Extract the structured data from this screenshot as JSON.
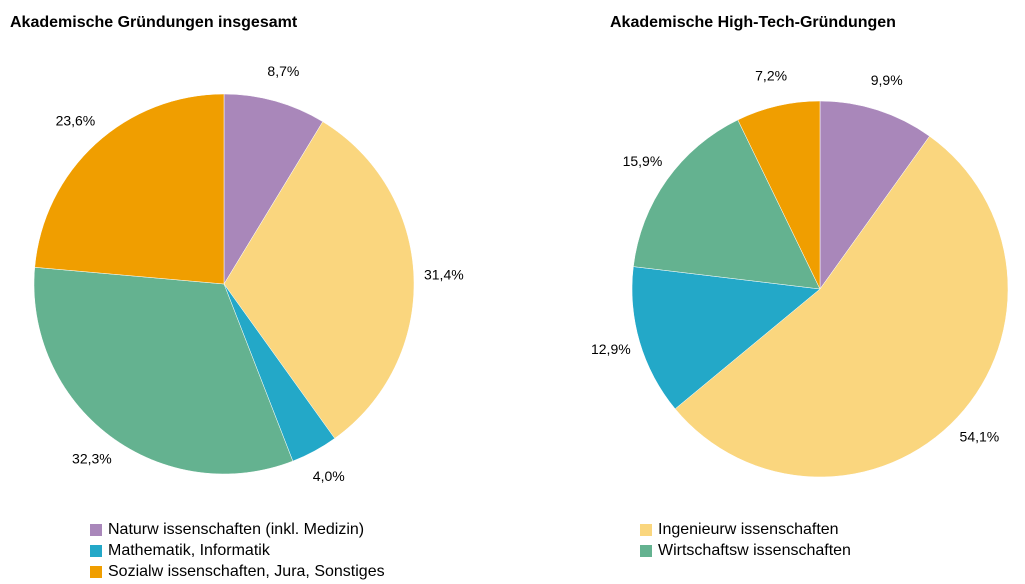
{
  "legend": {
    "categories": [
      "Naturw issenschaften (inkl. Medizin)",
      "Ingenieurw issenschaften",
      "Mathematik, Informatik",
      "Wirtschaftsw issenschaften",
      "Sozialw issenschaften, Jura, Sonstiges"
    ],
    "colors": [
      "#a987ba",
      "#fad67e",
      "#23a8c8",
      "#64b290",
      "#f09e00"
    ]
  },
  "chart_data": [
    {
      "type": "pie",
      "title": "Akademische Gründungen insgesamt",
      "values": [
        8.7,
        31.4,
        4.0,
        32.3,
        23.6
      ],
      "value_labels": [
        "8,7%",
        "31,4%",
        "4,0%",
        "32,3%",
        "23,6%"
      ]
    },
    {
      "type": "pie",
      "title": "Akademische High-Tech-Gründungen",
      "values": [
        9.9,
        54.1,
        12.9,
        15.9,
        7.2
      ],
      "value_labels": [
        "9,9%",
        "54,1%",
        "12,9%",
        "15,9%",
        "7,2%"
      ]
    }
  ]
}
